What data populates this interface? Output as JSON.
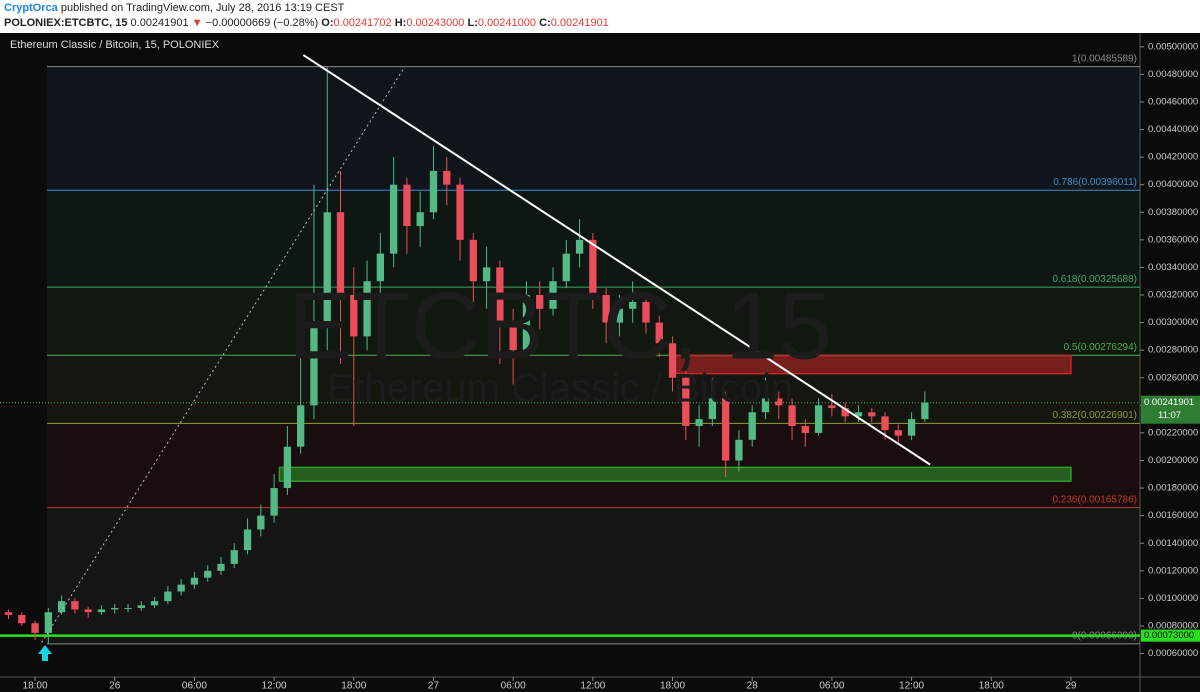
{
  "header": {
    "author": "CryptOrca",
    "published": "published on TradingView.com, July 28, 2016 13:19 CEST",
    "symbol": "POLONIEX:ETCBTC, 15",
    "last": "0.00241901",
    "change": "−0.00000669 (−0.28%)",
    "ohlc": [
      {
        "label": "O:",
        "value": "0.00241702"
      },
      {
        "label": "H:",
        "value": "0.00243000"
      },
      {
        "label": "L:",
        "value": "0.00241000"
      },
      {
        "label": "C:",
        "value": "0.00241901"
      }
    ]
  },
  "chart_data": {
    "type": "candlestick",
    "title": "Ethereum Classic / Bitcoin, 15, POLONIEX",
    "watermark": "ETCBTC, 15",
    "watermark_sub": "Ethereum Classic / Bitcoin",
    "up_color": "#53b987",
    "down_color": "#eb4d5c",
    "x": [
      -2,
      -1,
      0,
      1,
      2,
      3,
      4,
      5,
      6,
      7,
      8,
      9,
      10,
      11,
      12,
      13,
      14,
      15,
      16,
      17,
      18,
      19,
      20,
      21,
      22,
      23,
      24,
      25,
      26,
      27,
      28,
      29,
      30,
      31,
      32,
      33,
      34,
      35,
      36,
      37,
      38,
      39,
      40,
      41,
      42,
      43,
      44,
      45,
      46,
      47,
      48,
      49,
      50,
      51,
      52,
      53,
      54,
      55,
      56,
      57,
      58,
      59,
      60,
      61,
      62,
      63,
      64,
      65,
      66,
      67
    ],
    "open": [
      0.0009,
      0.00088,
      0.00082,
      0.00075,
      0.0009,
      0.00098,
      0.00092,
      0.0009,
      0.00092,
      0.00093,
      0.00093,
      0.00095,
      0.00098,
      0.00105,
      0.0011,
      0.00115,
      0.0012,
      0.00125,
      0.00135,
      0.0015,
      0.0016,
      0.0018,
      0.0021,
      0.0024,
      0.003,
      0.0038,
      0.0032,
      0.0029,
      0.0033,
      0.0035,
      0.004,
      0.0037,
      0.0038,
      0.0041,
      0.004,
      0.0036,
      0.0033,
      0.0034,
      0.003,
      0.0028,
      0.0032,
      0.0031,
      0.0033,
      0.0035,
      0.0036,
      0.0032,
      0.003,
      0.0031,
      0.00315,
      0.003,
      0.00285,
      0.0026,
      0.00225,
      0.0023,
      0.00245,
      0.002,
      0.00215,
      0.00235,
      0.00245,
      0.0024,
      0.00225,
      0.0022,
      0.0024,
      0.00238,
      0.00232,
      0.00235,
      0.00232,
      0.00222,
      0.00218,
      0.0023
    ],
    "high": [
      0.00092,
      0.0009,
      0.00084,
      0.00093,
      0.00102,
      0.001,
      0.00094,
      0.00095,
      0.00096,
      0.00096,
      0.00098,
      0.00101,
      0.00109,
      0.00114,
      0.00119,
      0.00124,
      0.0013,
      0.0014,
      0.00158,
      0.00168,
      0.0019,
      0.00225,
      0.00275,
      0.004,
      0.00485,
      0.0041,
      0.0034,
      0.00345,
      0.00365,
      0.0042,
      0.00405,
      0.00395,
      0.00428,
      0.0042,
      0.00405,
      0.00365,
      0.00355,
      0.00345,
      0.0031,
      0.0033,
      0.0033,
      0.0034,
      0.0036,
      0.00375,
      0.00365,
      0.00325,
      0.0032,
      0.0033,
      0.0032,
      0.00305,
      0.0029,
      0.00265,
      0.0024,
      0.0026,
      0.0025,
      0.00222,
      0.0024,
      0.0026,
      0.0025,
      0.00245,
      0.0023,
      0.00245,
      0.00248,
      0.00242,
      0.0024,
      0.00238,
      0.00235,
      0.00226,
      0.00235,
      0.0025
    ],
    "low": [
      0.00085,
      0.0008,
      0.0007,
      0.00067,
      0.00088,
      0.00089,
      0.00086,
      0.00088,
      0.00089,
      0.0009,
      0.00091,
      0.00093,
      0.00096,
      0.00102,
      0.00107,
      0.00112,
      0.00117,
      0.00122,
      0.00132,
      0.00145,
      0.00155,
      0.00175,
      0.00205,
      0.0023,
      0.0028,
      0.0027,
      0.00225,
      0.0028,
      0.0031,
      0.0034,
      0.0035,
      0.00355,
      0.00375,
      0.00385,
      0.00345,
      0.00315,
      0.0031,
      0.0027,
      0.00255,
      0.00275,
      0.00295,
      0.00305,
      0.00325,
      0.0034,
      0.0031,
      0.00285,
      0.0029,
      0.003,
      0.00292,
      0.00275,
      0.0025,
      0.00215,
      0.0021,
      0.00225,
      0.00188,
      0.00192,
      0.0021,
      0.0023,
      0.0023,
      0.00215,
      0.0021,
      0.00218,
      0.00232,
      0.00228,
      0.00228,
      0.00228,
      0.00215,
      0.00212,
      0.00215,
      0.00228
    ],
    "close": [
      0.00088,
      0.00082,
      0.00075,
      0.0009,
      0.00098,
      0.00092,
      0.0009,
      0.00092,
      0.00093,
      0.00093,
      0.00095,
      0.00098,
      0.00105,
      0.0011,
      0.00115,
      0.0012,
      0.00125,
      0.00135,
      0.0015,
      0.0016,
      0.0018,
      0.0021,
      0.0024,
      0.003,
      0.0038,
      0.0032,
      0.0029,
      0.0033,
      0.0035,
      0.004,
      0.0037,
      0.0038,
      0.0041,
      0.004,
      0.0036,
      0.0033,
      0.0034,
      0.003,
      0.0028,
      0.0032,
      0.0031,
      0.0033,
      0.0035,
      0.0036,
      0.0032,
      0.003,
      0.0031,
      0.00315,
      0.003,
      0.00285,
      0.0026,
      0.00225,
      0.0023,
      0.00245,
      0.002,
      0.00215,
      0.00235,
      0.00245,
      0.0024,
      0.00225,
      0.0022,
      0.0024,
      0.00238,
      0.00232,
      0.00235,
      0.00232,
      0.00222,
      0.00218,
      0.0023,
      0.00242
    ],
    "xlim": [
      -2.64,
      83.2
    ],
    "xticks": [
      {
        "value": 0,
        "label": "18:00"
      },
      {
        "value": 6,
        "label": "26"
      },
      {
        "value": 12,
        "label": "06:00"
      },
      {
        "value": 18,
        "label": "12:00"
      },
      {
        "value": 24,
        "label": "18:00"
      },
      {
        "value": 30,
        "label": "27"
      },
      {
        "value": 36,
        "label": "06:00"
      },
      {
        "value": 42,
        "label": "12:00"
      },
      {
        "value": 48,
        "label": "18:00"
      },
      {
        "value": 54,
        "label": "28"
      },
      {
        "value": 60,
        "label": "06:00"
      },
      {
        "value": 66,
        "label": "12:00"
      },
      {
        "value": 72,
        "label": "18:00"
      },
      {
        "value": 78,
        "label": "29"
      }
    ],
    "ylim": [
      0.00043,
      0.0051
    ],
    "yticks": [
      {
        "value": 0.0006,
        "label": "0.00060000"
      },
      {
        "value": 0.0008,
        "label": "0.00080000"
      },
      {
        "value": 0.001,
        "label": "0.00100000"
      },
      {
        "value": 0.0012,
        "label": "0.00120000"
      },
      {
        "value": 0.0014,
        "label": "0.00140000"
      },
      {
        "value": 0.0016,
        "label": "0.00160000"
      },
      {
        "value": 0.0018,
        "label": "0.00180000"
      },
      {
        "value": 0.002,
        "label": "0.00200000"
      },
      {
        "value": 0.0022,
        "label": "0.00220000"
      },
      {
        "value": 0.0024,
        "label": "0.00240000"
      },
      {
        "value": 0.0026,
        "label": "0.00260000"
      },
      {
        "value": 0.0028,
        "label": "0.00280000"
      },
      {
        "value": 0.003,
        "label": "0.00300000"
      },
      {
        "value": 0.0032,
        "label": "0.00320000"
      },
      {
        "value": 0.0034,
        "label": "0.00340000"
      },
      {
        "value": 0.0036,
        "label": "0.00360000"
      },
      {
        "value": 0.0038,
        "label": "0.00380000"
      },
      {
        "value": 0.004,
        "label": "0.00400000"
      },
      {
        "value": 0.0042,
        "label": "0.00420000"
      },
      {
        "value": 0.0044,
        "label": "0.00440000"
      },
      {
        "value": 0.0046,
        "label": "0.00460000"
      },
      {
        "value": 0.0048,
        "label": "0.00480000"
      },
      {
        "value": 0.005,
        "label": "0.00500000"
      }
    ],
    "fib_levels": [
      {
        "value": 0.00485589,
        "label": "1(0.00485589)",
        "color": "#8a8a8a"
      },
      {
        "value": 0.00396011,
        "label": "0.786(0.00396011)",
        "color": "#3d8ec9"
      },
      {
        "value": 0.00325688,
        "label": "0.618(0.00325688)",
        "color": "#3fa86a"
      },
      {
        "value": 0.00276294,
        "label": "0.5(0.00276294)",
        "color": "#4caf50"
      },
      {
        "value": 0.00226901,
        "label": "0.382(0.00226901)",
        "color": "#8e9c3a"
      },
      {
        "value": 0.00165786,
        "label": "0.236(0.00165786)",
        "color": "#c0392b"
      },
      {
        "value": 0.00066999,
        "label": "0(0.00066999)",
        "color": "#8a8a8a"
      }
    ],
    "fib_start": 0.9,
    "zones": [
      {
        "x": [
          48.2,
          78
        ],
        "y": [
          0.00263,
          0.00276
        ],
        "color": "#c62828"
      },
      {
        "x": [
          18.4,
          78
        ],
        "y": [
          0.00185,
          0.00195
        ],
        "color": "#2e9e2e"
      }
    ],
    "trendlines": [
      {
        "x": [
          20.2,
          67.4
        ],
        "y": [
          0.00494,
          0.00197
        ],
        "color": "#ffffff",
        "dash": false
      },
      {
        "x": [
          0.5,
          27.8
        ],
        "y": [
          0.00068,
          0.00485
        ],
        "color": "#bbbbbb",
        "dash": true
      }
    ],
    "support_line": {
      "value": 0.00073,
      "label": "0.00073000",
      "color": "#27e01b"
    },
    "last_price": {
      "value": 0.00241901,
      "label": "0.00241901",
      "countdown": "11:07",
      "color": "#2e7d32"
    }
  }
}
